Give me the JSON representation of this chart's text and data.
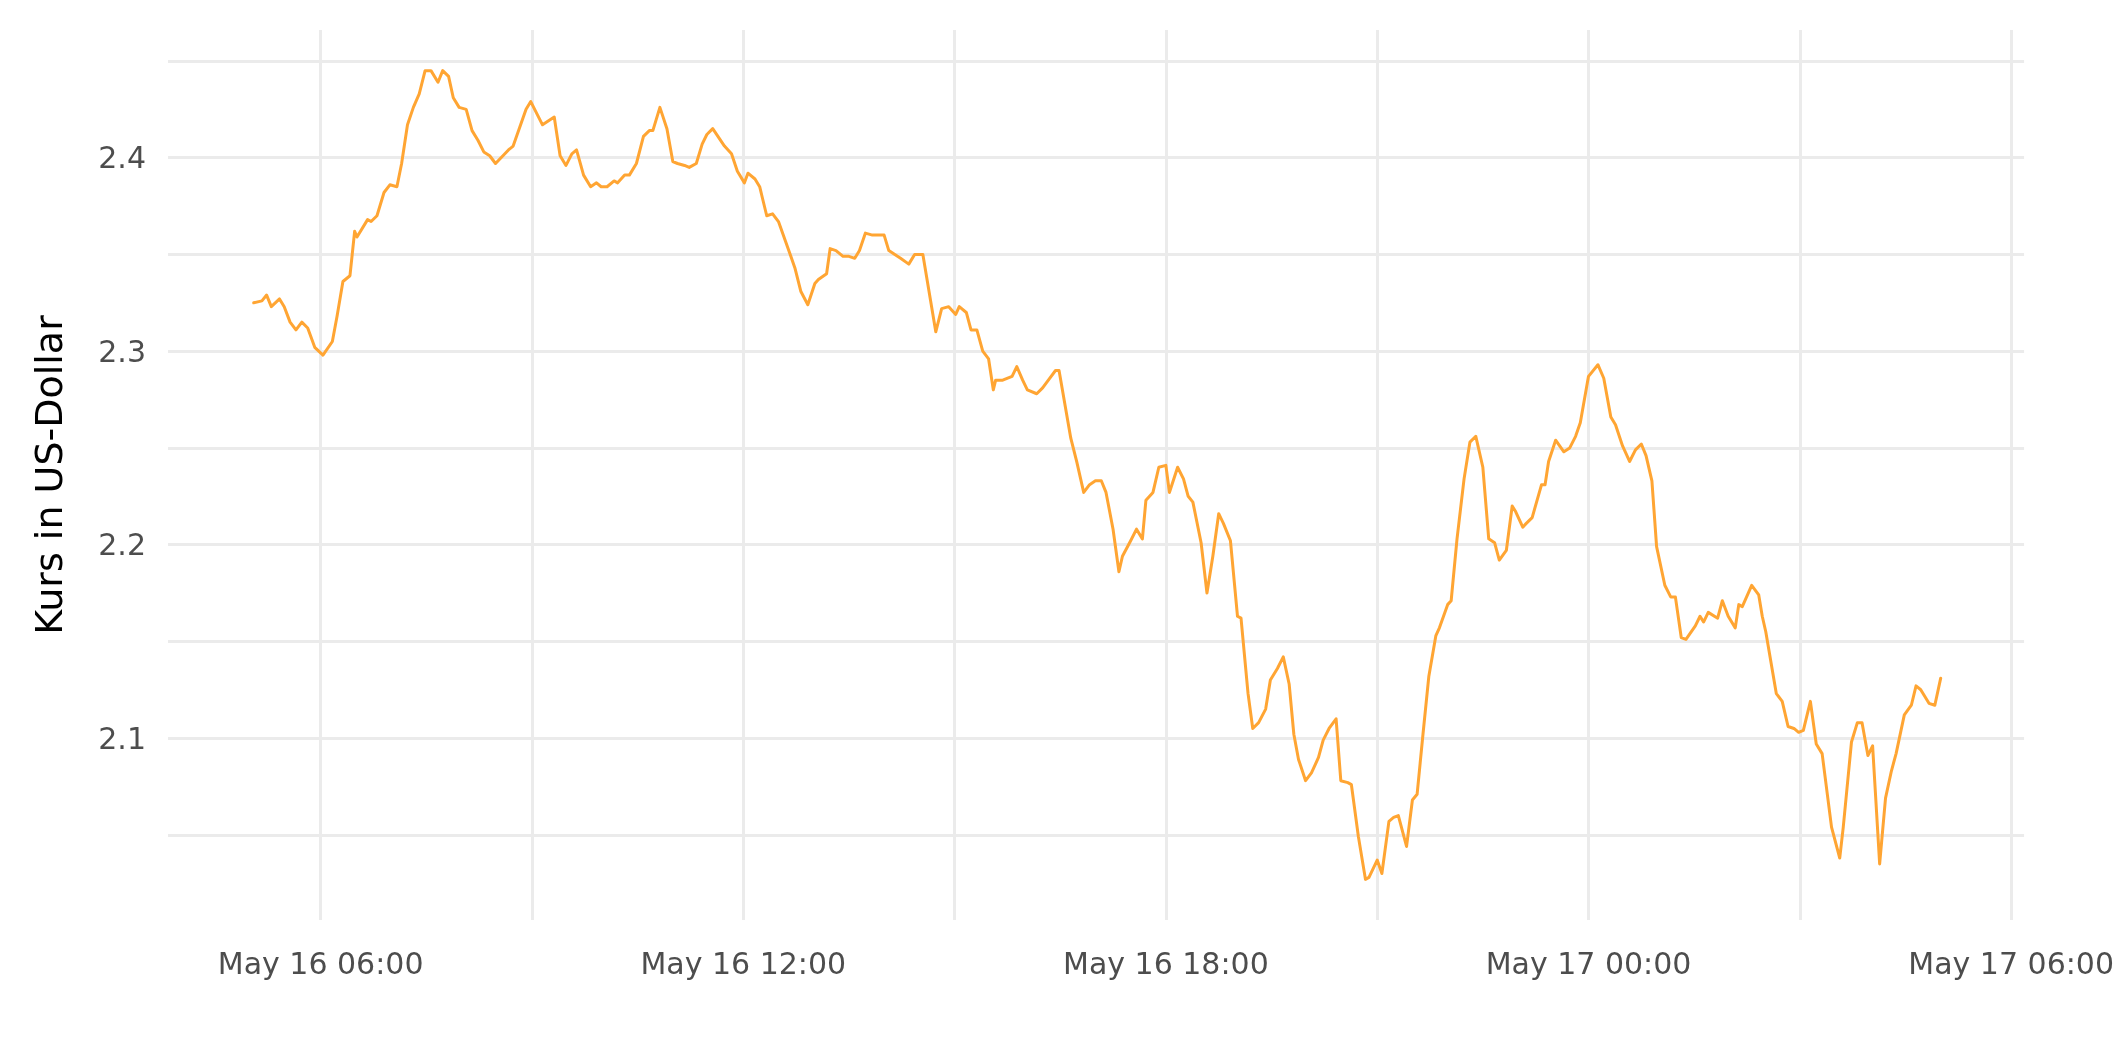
{
  "chart_data": {
    "type": "line",
    "ylabel": "Kurs in US-Dollar",
    "xlim": [
      "--05-16T03:50",
      "--05-17T06:11"
    ],
    "xticks": [
      {
        "value": "--05-16T06:00",
        "label": "May 16 06:00"
      },
      {
        "value": "--05-16T09:00",
        "label": null
      },
      {
        "value": "--05-16T12:00",
        "label": "May 16 12:00"
      },
      {
        "value": "--05-16T15:00",
        "label": null
      },
      {
        "value": "--05-16T18:00",
        "label": "May 16 18:00"
      },
      {
        "value": "--05-16T21:00",
        "label": null
      },
      {
        "value": "--05-17T00:00",
        "label": "May 17 00:00"
      },
      {
        "value": "--05-17T03:00",
        "label": null
      },
      {
        "value": "--05-17T06:00",
        "label": "May 17 06:00"
      }
    ],
    "ylim": [
      2.006,
      2.466
    ],
    "yticks": [
      {
        "value": 2.05,
        "label": null
      },
      2.1,
      {
        "value": 2.15,
        "label": null
      },
      2.2,
      {
        "value": 2.25,
        "label": null
      },
      2.3,
      {
        "value": 2.35,
        "label": null
      },
      2.4,
      {
        "value": 2.45,
        "label": null
      }
    ],
    "grid": true,
    "marker": "none",
    "line_style": "solid",
    "series": [
      {
        "color": "#ffa533",
        "x": [
          "--05-16T05:03",
          "--05-16T05:10",
          "--05-16T05:14",
          "--05-16T05:18",
          "--05-16T05:25",
          "--05-16T05:29",
          "--05-16T05:34",
          "--05-16T05:39",
          "--05-16T05:44",
          "--05-16T05:49",
          "--05-16T05:55",
          "--05-16T06:02",
          "--05-16T06:10",
          "--05-16T06:14",
          "--05-16T06:19",
          "--05-16T06:25",
          "--05-16T06:29",
          "--05-16T06:31",
          "--05-16T06:40",
          "--05-16T06:43",
          "--05-16T06:48",
          "--05-16T06:54",
          "--05-16T06:59",
          "--05-16T07:05",
          "--05-16T07:09",
          "--05-16T07:14",
          "--05-16T07:19",
          "--05-16T07:24",
          "--05-16T07:29",
          "--05-16T07:34",
          "--05-16T07:40",
          "--05-16T07:44",
          "--05-16T07:49",
          "--05-16T07:53",
          "--05-16T07:58",
          "--05-16T08:04",
          "--05-16T08:09",
          "--05-16T08:14",
          "--05-16T08:19",
          "--05-16T08:24",
          "--05-16T08:29",
          "--05-16T08:40",
          "--05-16T08:44",
          "--05-16T08:55",
          "--05-16T08:59",
          "--05-16T09:09",
          "--05-16T09:19",
          "--05-16T09:24",
          "--05-16T09:29",
          "--05-16T09:34",
          "--05-16T09:38",
          "--05-16T09:44",
          "--05-16T09:50",
          "--05-16T09:55",
          "--05-16T09:59",
          "--05-16T10:04",
          "--05-16T10:10",
          "--05-16T10:13",
          "--05-16T10:19",
          "--05-16T10:23",
          "--05-16T10:29",
          "--05-16T10:35",
          "--05-16T10:40",
          "--05-16T10:43",
          "--05-16T10:49",
          "--05-16T10:55",
          "--05-16T11:00",
          "--05-16T11:04",
          "--05-16T11:10",
          "--05-16T11:14",
          "--05-16T11:20",
          "--05-16T11:25",
          "--05-16T11:29",
          "--05-16T11:34",
          "--05-16T11:44",
          "--05-16T11:50",
          "--05-16T11:55",
          "--05-16T12:01",
          "--05-16T12:04",
          "--05-16T12:10",
          "--05-16T12:14",
          "--05-16T12:20",
          "--05-16T12:25",
          "--05-16T12:30",
          "--05-16T12:40",
          "--05-16T12:44",
          "--05-16T12:49",
          "--05-16T12:55",
          "--05-16T13:01",
          "--05-16T13:04",
          "--05-16T13:11",
          "--05-16T13:14",
          "--05-16T13:19",
          "--05-16T13:25",
          "--05-16T13:30",
          "--05-16T13:35",
          "--05-16T13:39",
          "--05-16T13:44",
          "--05-16T13:50",
          "--05-16T14:00",
          "--05-16T14:04",
          "--05-16T14:14",
          "--05-16T14:21",
          "--05-16T14:26",
          "--05-16T14:33",
          "--05-16T14:44",
          "--05-16T14:49",
          "--05-16T14:55",
          "--05-16T15:01",
          "--05-16T15:04",
          "--05-16T15:10",
          "--05-16T15:14",
          "--05-16T15:19",
          "--05-16T15:24",
          "--05-16T15:29",
          "--05-16T15:33",
          "--05-16T15:35",
          "--05-16T15:41",
          "--05-16T15:49",
          "--05-16T15:53",
          "--05-16T15:58",
          "--05-16T16:02",
          "--05-16T16:10",
          "--05-16T16:15",
          "--05-16T16:21",
          "--05-16T16:26",
          "--05-16T16:29",
          "--05-16T16:39",
          "--05-16T16:44",
          "--05-16T16:50",
          "--05-16T16:55",
          "--05-16T17:00",
          "--05-16T17:05",
          "--05-16T17:09",
          "--05-16T17:15",
          "--05-16T17:20",
          "--05-16T17:23",
          "--05-16T17:30",
          "--05-16T17:35",
          "--05-16T17:40",
          "--05-16T17:43",
          "--05-16T17:49",
          "--05-16T17:54",
          "--05-16T18:00",
          "--05-16T18:03",
          "--05-16T18:10",
          "--05-16T18:15",
          "--05-16T18:19",
          "--05-16T18:23",
          "--05-16T18:30",
          "--05-16T18:35",
          "--05-16T18:40",
          "--05-16T18:45",
          "--05-16T18:49",
          "--05-16T18:55",
          "--05-16T19:01",
          "--05-16T19:04",
          "--05-16T19:10",
          "--05-16T19:14",
          "--05-16T19:19",
          "--05-16T19:25",
          "--05-16T19:29",
          "--05-16T19:35",
          "--05-16T19:40",
          "--05-16T19:45",
          "--05-16T19:49",
          "--05-16T19:53",
          "--05-16T19:59",
          "--05-16T20:04",
          "--05-16T20:10",
          "--05-16T20:14",
          "--05-16T20:19",
          "--05-16T20:25",
          "--05-16T20:29",
          "--05-16T20:35",
          "--05-16T20:38",
          "--05-16T20:44",
          "--05-16T20:50",
          "--05-16T20:53",
          "--05-16T21:00",
          "--05-16T21:04",
          "--05-16T21:10",
          "--05-16T21:14",
          "--05-16T21:18",
          "--05-16T21:25",
          "--05-16T21:30",
          "--05-16T21:34",
          "--05-16T21:39",
          "--05-16T21:44",
          "--05-16T21:50",
          "--05-16T21:53",
          "--05-16T22:00",
          "--05-16T22:03",
          "--05-16T22:08",
          "--05-16T22:14",
          "--05-16T22:19",
          "--05-16T22:24",
          "--05-16T22:30",
          "--05-16T22:35",
          "--05-16T22:40",
          "--05-16T22:44",
          "--05-16T22:50",
          "--05-16T22:55",
          "--05-16T22:58",
          "--05-16T23:04",
          "--05-16T23:07",
          "--05-16T23:12",
          "--05-16T23:20",
          "--05-16T23:23",
          "--05-16T23:26",
          "--05-16T23:32",
          "--05-16T23:39",
          "--05-16T23:44",
          "--05-16T23:49",
          "--05-16T23:53",
          "--05-17T00:00",
          "--05-17T00:08",
          "--05-17T00:13",
          "--05-17T00:19",
          "--05-17T00:23",
          "--05-17T00:29",
          "--05-17T00:35",
          "--05-17T00:40",
          "--05-17T00:45",
          "--05-17T00:49",
          "--05-17T00:54",
          "--05-17T00:58",
          "--05-17T01:05",
          "--05-17T01:10",
          "--05-17T01:14",
          "--05-17T01:19",
          "--05-17T01:23",
          "--05-17T01:31",
          "--05-17T01:35",
          "--05-17T01:38",
          "--05-17T01:42",
          "--05-17T01:50",
          "--05-17T01:54",
          "--05-17T01:59",
          "--05-17T02:05",
          "--05-17T02:08",
          "--05-17T02:11",
          "--05-17T02:19",
          "--05-17T02:25",
          "--05-17T02:28",
          "--05-17T02:31",
          "--05-17T02:40",
          "--05-17T02:45",
          "--05-17T02:50",
          "--05-17T02:55",
          "--05-17T02:59",
          "--05-17T03:03",
          "--05-17T03:09",
          "--05-17T03:14",
          "--05-17T03:19",
          "--05-17T03:27",
          "--05-17T03:34",
          "--05-17T03:37",
          "--05-17T03:44",
          "--05-17T03:49",
          "--05-17T03:53",
          "--05-17T03:58",
          "--05-17T04:02",
          "--05-17T04:08",
          "--05-17T04:13",
          "--05-17T04:18",
          "--05-17T04:22",
          "--05-17T04:29",
          "--05-17T04:35",
          "--05-17T04:39",
          "--05-17T04:43",
          "--05-17T04:50",
          "--05-17T04:55",
          "--05-17T05:00"
        ],
        "values": [
          2.325,
          2.326,
          2.329,
          2.323,
          2.327,
          2.323,
          2.315,
          2.311,
          2.315,
          2.312,
          2.302,
          2.298,
          2.305,
          2.318,
          2.336,
          2.339,
          2.362,
          2.359,
          2.368,
          2.367,
          2.37,
          2.382,
          2.386,
          2.385,
          2.397,
          2.417,
          2.426,
          2.433,
          2.445,
          2.445,
          2.439,
          2.445,
          2.442,
          2.431,
          2.426,
          2.425,
          2.414,
          2.409,
          2.403,
          2.401,
          2.397,
          2.404,
          2.406,
          2.425,
          2.429,
          2.417,
          2.421,
          2.401,
          2.396,
          2.402,
          2.404,
          2.391,
          2.385,
          2.387,
          2.385,
          2.385,
          2.388,
          2.387,
          2.391,
          2.391,
          2.397,
          2.411,
          2.414,
          2.414,
          2.426,
          2.415,
          2.398,
          2.397,
          2.396,
          2.395,
          2.397,
          2.407,
          2.412,
          2.415,
          2.406,
          2.402,
          2.393,
          2.387,
          2.392,
          2.389,
          2.385,
          2.37,
          2.371,
          2.367,
          2.35,
          2.343,
          2.331,
          2.324,
          2.335,
          2.337,
          2.34,
          2.353,
          2.352,
          2.349,
          2.349,
          2.348,
          2.352,
          2.361,
          2.36,
          2.36,
          2.352,
          2.348,
          2.345,
          2.35,
          2.35,
          2.31,
          2.322,
          2.323,
          2.319,
          2.323,
          2.32,
          2.311,
          2.311,
          2.3,
          2.296,
          2.28,
          2.285,
          2.285,
          2.287,
          2.292,
          2.285,
          2.28,
          2.278,
          2.281,
          2.286,
          2.29,
          2.29,
          2.255,
          2.243,
          2.227,
          2.231,
          2.233,
          2.233,
          2.227,
          2.208,
          2.186,
          2.194,
          2.202,
          2.208,
          2.203,
          2.223,
          2.227,
          2.24,
          2.241,
          2.227,
          2.24,
          2.234,
          2.225,
          2.222,
          2.201,
          2.175,
          2.194,
          2.216,
          2.211,
          2.202,
          2.163,
          2.162,
          2.123,
          2.105,
          2.108,
          2.115,
          2.13,
          2.136,
          2.142,
          2.128,
          2.102,
          2.089,
          2.078,
          2.082,
          2.09,
          2.099,
          2.105,
          2.11,
          2.078,
          2.077,
          2.076,
          2.049,
          2.027,
          2.028,
          2.037,
          2.03,
          2.057,
          2.059,
          2.06,
          2.044,
          2.068,
          2.071,
          2.102,
          2.132,
          2.153,
          2.157,
          2.169,
          2.171,
          2.203,
          2.234,
          2.253,
          2.256,
          2.24,
          2.203,
          2.201,
          2.192,
          2.197,
          2.22,
          2.217,
          2.209,
          2.211,
          2.214,
          2.231,
          2.231,
          2.243,
          2.254,
          2.248,
          2.25,
          2.256,
          2.263,
          2.287,
          2.293,
          2.286,
          2.266,
          2.262,
          2.251,
          2.243,
          2.249,
          2.252,
          2.246,
          2.233,
          2.199,
          2.179,
          2.173,
          2.173,
          2.152,
          2.151,
          2.158,
          2.163,
          2.16,
          2.165,
          2.162,
          2.171,
          2.163,
          2.157,
          2.169,
          2.168,
          2.179,
          2.174,
          2.163,
          2.155,
          2.123,
          2.119,
          2.106,
          2.105,
          2.103,
          2.104,
          2.119,
          2.097,
          2.092,
          2.054,
          2.038,
          2.054,
          2.098,
          2.108,
          2.108,
          2.091,
          2.096,
          2.035,
          2.069,
          2.083,
          2.092,
          2.112,
          2.117,
          2.127,
          2.125,
          2.118,
          2.117,
          2.131
        ]
      }
    ]
  }
}
